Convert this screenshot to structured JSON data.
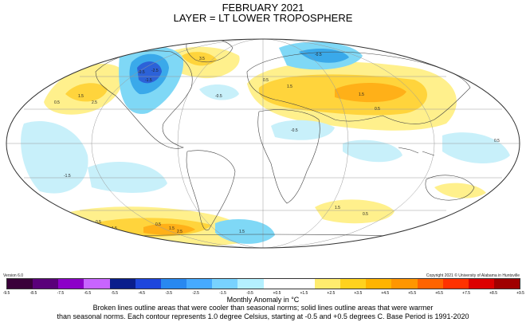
{
  "title": "FEBRUARY 2021",
  "subtitle": "LAYER = LT LOWER TROPOSPHERE",
  "version": "Version 6.0",
  "copyright": "Copyright 2021 © University of Alabama in Huntsville",
  "legend_units": "Monthly Anomaly in °C",
  "caption_line1": "Broken lines outline areas that were cooler than seasonal norms; solid lines outline areas that were warmer",
  "caption_line2": "than seasonal norms. Each contour represents 1.0 degree Celsius, starting at -0.5 and +0.5 degrees C. Base Period is 1991-2020",
  "colorbar": {
    "colors": [
      "#3a003a",
      "#5a007a",
      "#8c00c8",
      "#c864ff",
      "#0a1e8c",
      "#1e46dc",
      "#2888f0",
      "#46aaff",
      "#78d2ff",
      "#b4f0ff",
      "#ffffff",
      "#ffffff",
      "#ffec6e",
      "#ffd21e",
      "#ffb400",
      "#ff9600",
      "#ff6400",
      "#ff3200",
      "#dc0000",
      "#a00000"
    ],
    "ticks": [
      "-9.5",
      "-8.5",
      "-7.5",
      "-6.5",
      "-5.5",
      "-4.5",
      "-3.5",
      "-2.5",
      "-1.5",
      "-0.5",
      "+0.5",
      "+1.5",
      "+2.5",
      "+3.5",
      "+4.5",
      "+5.5",
      "+6.5",
      "+7.5",
      "+8.5",
      "+9.5"
    ]
  },
  "contour_labels": [
    "-0.5",
    "-1.5",
    "-2.5",
    "0.5",
    "1.5",
    "2.5",
    "3.5",
    "0.5",
    "1.5",
    "-0.5",
    "0.5",
    "1.5",
    "-0.5",
    "-0.5",
    "-1.5",
    "0.5",
    "1.5",
    "0.5",
    "1.5",
    "2.5",
    "1.5",
    "0.5",
    "1.5",
    "0.5",
    "2.5",
    "0.5",
    "1.5"
  ],
  "colors": {
    "cool_light": "#c8f0fa",
    "cool_mid": "#7fd8f6",
    "cool_strong": "#3aa9ea",
    "cool_deep": "#2c62d8",
    "warm_light": "#fff08c",
    "warm_mid": "#ffd43c",
    "warm_strong": "#ffb018",
    "land_line": "#444444",
    "grid": "#999999"
  }
}
